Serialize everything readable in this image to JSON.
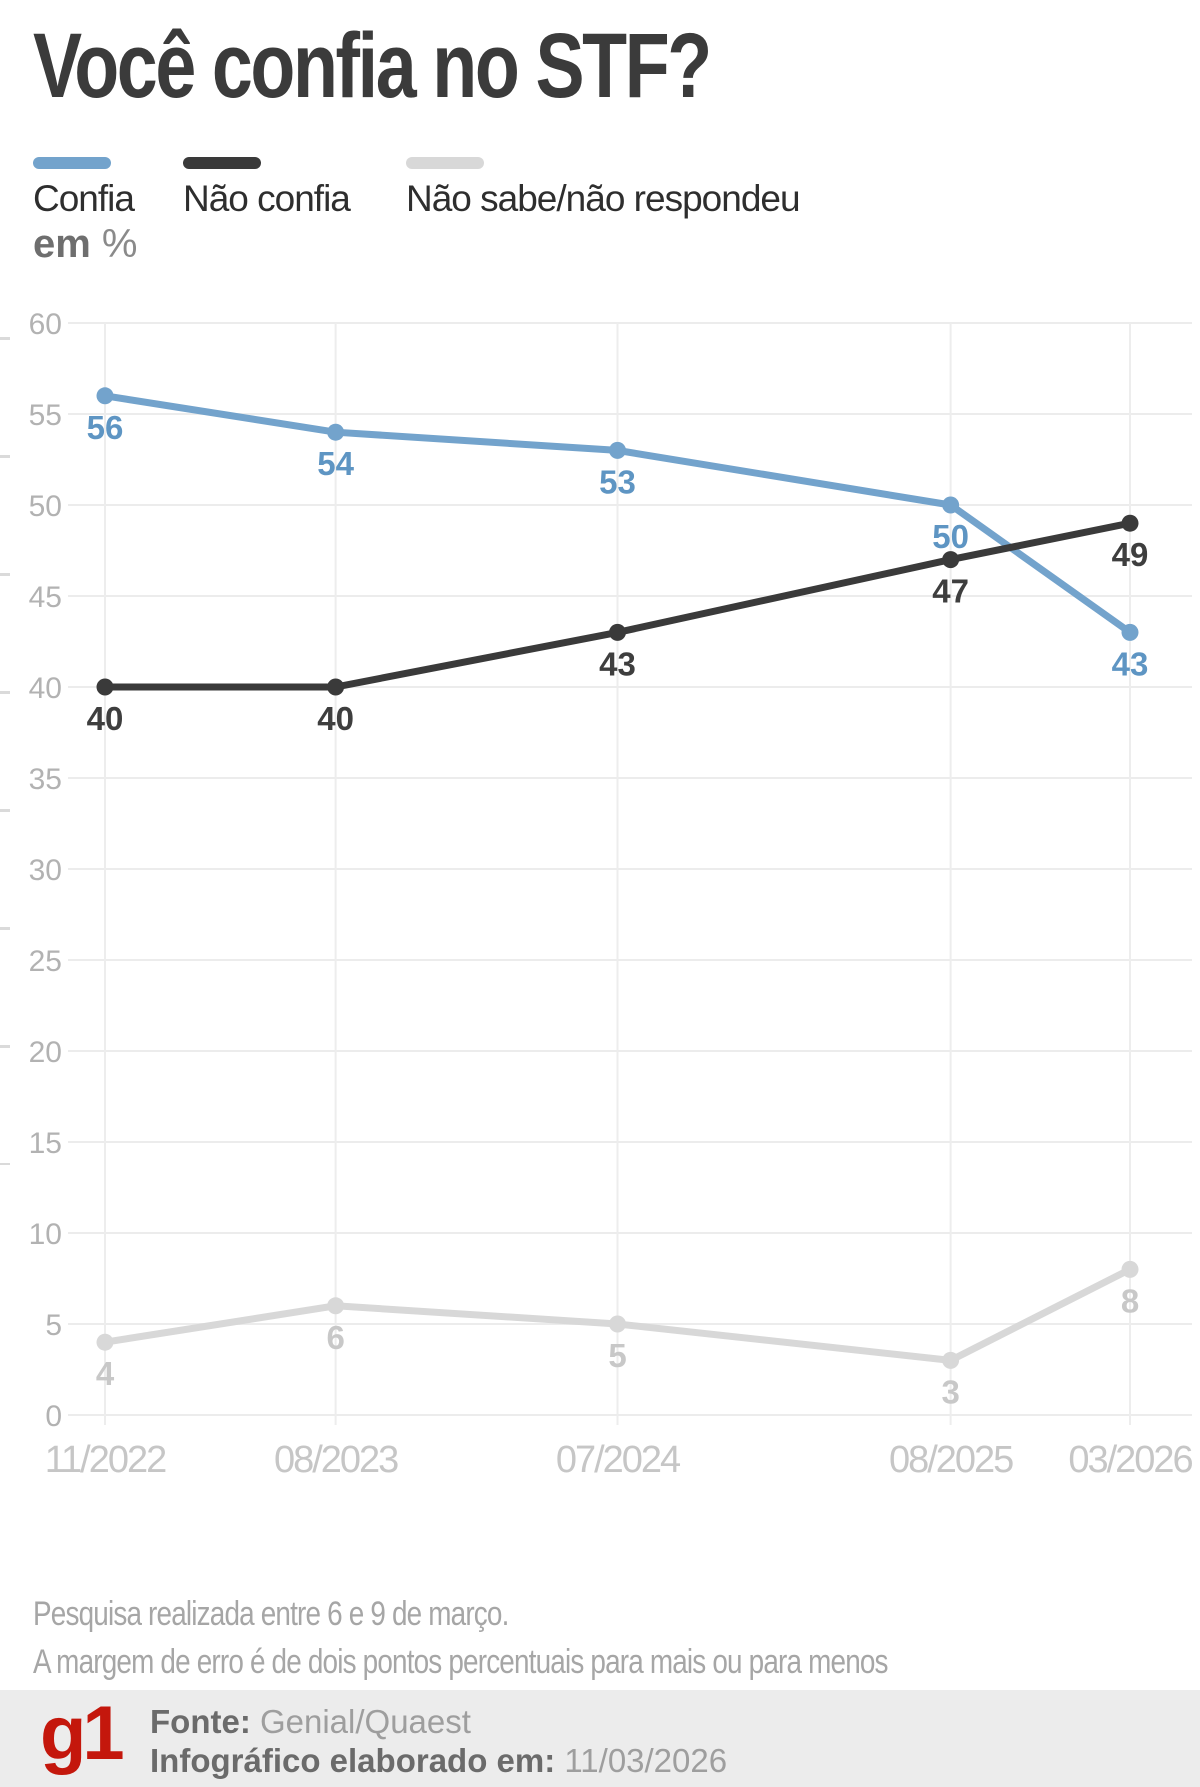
{
  "title": "Você confia no STF?",
  "legend": [
    {
      "label": "Confia",
      "color": "#73A3CC"
    },
    {
      "label": "Não confia",
      "color": "#3A3A3A"
    },
    {
      "label": "Não sabe/não respondeu",
      "color": "#D8D8D8"
    }
  ],
  "unit_label": {
    "bold": "em",
    "rest": " %"
  },
  "chart_data": {
    "type": "line",
    "title": "Você confia no STF?",
    "ylabel": "em %",
    "categories": [
      "11/2022",
      "08/2023",
      "07/2024",
      "08/2025",
      "03/2026"
    ],
    "x_months": [
      0,
      9,
      20,
      33,
      40
    ],
    "series": [
      {
        "name": "Confia",
        "color": "#73A3CC",
        "label_color": "#5E95C3",
        "values": [
          56,
          54,
          53,
          50,
          43
        ]
      },
      {
        "name": "Não confia",
        "color": "#3A3A3A",
        "label_color": "#3E3E3E",
        "values": [
          40,
          40,
          43,
          47,
          49
        ]
      },
      {
        "name": "Não sabe/não respondeu",
        "color": "#D8D8D8",
        "label_color": "#C8C8C8",
        "values": [
          4,
          6,
          5,
          3,
          8
        ]
      }
    ],
    "ylim": [
      0,
      60
    ],
    "ytick_step": 5,
    "grid": true,
    "legend_position": "top",
    "colors": {
      "h_gridline": "#ECECEC",
      "v_gridline": "#EDEDED",
      "ytick_label": "#B2B2B2",
      "xtick_label": "#C6C6C6",
      "edge_dashes": "#DADADA"
    }
  },
  "footnotes": [
    "Pesquisa realizada entre 6 e 9 de março.",
    "A margem de erro é de dois pontos percentuais para mais ou para menos"
  ],
  "footer": {
    "logo": "g1",
    "logo_color": "#C4170C",
    "source_label": "Fonte:",
    "source_value": " Genial/Quaest",
    "info_label": "Infográfico elaborado em:",
    "info_value": " 11/03/2026"
  }
}
